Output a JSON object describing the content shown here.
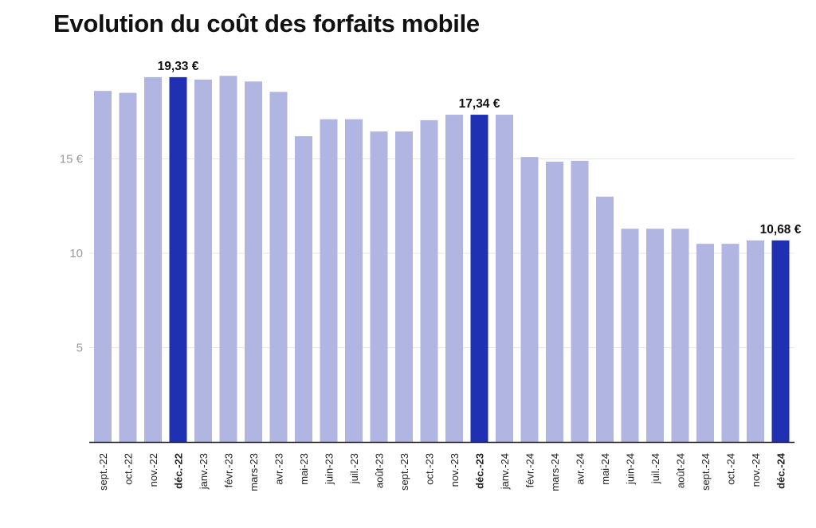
{
  "chart_data": {
    "type": "bar",
    "title": "Evolution du coût des forfaits mobile",
    "xlabel": "",
    "ylabel": "",
    "ylim": [
      0,
      20
    ],
    "grid": true,
    "legend": "none",
    "y_ticks": [
      {
        "value": 5,
        "label": "5"
      },
      {
        "value": 10,
        "label": "10"
      },
      {
        "value": 15,
        "label": "15 €"
      }
    ],
    "categories": [
      "sept.-22",
      "oct.-22",
      "nov.-22",
      "déc.-22",
      "janv.-23",
      "févr.-23",
      "mars-23",
      "avr.-23",
      "mai-23",
      "juin-23",
      "juil.-23",
      "août-23",
      "sept.-23",
      "oct.-23",
      "nov.-23",
      "déc.-23",
      "janv.-24",
      "févr.-24",
      "mars-24",
      "avr.-24",
      "mai-24",
      "juin-24",
      "juil.-24",
      "août-24",
      "sept.-24",
      "oct.-24",
      "nov.-24",
      "déc.-24"
    ],
    "values": [
      18.6,
      18.5,
      19.33,
      19.33,
      19.2,
      19.4,
      19.1,
      18.55,
      16.2,
      17.1,
      17.1,
      16.45,
      16.45,
      17.05,
      17.34,
      17.34,
      17.34,
      15.1,
      14.85,
      14.9,
      13.0,
      11.3,
      11.3,
      11.3,
      10.5,
      10.5,
      10.68,
      10.68
    ],
    "highlighted": [
      3,
      15,
      27
    ],
    "data_labels": [
      {
        "index": 3,
        "text": "19,33 €"
      },
      {
        "index": 15,
        "text": "17,34 €"
      },
      {
        "index": 27,
        "text": "10,68 €"
      }
    ],
    "colors": {
      "bar": "#b0b5e2",
      "highlight": "#2030b3",
      "grid": "#e6e6e6",
      "axis": "#222222"
    }
  }
}
